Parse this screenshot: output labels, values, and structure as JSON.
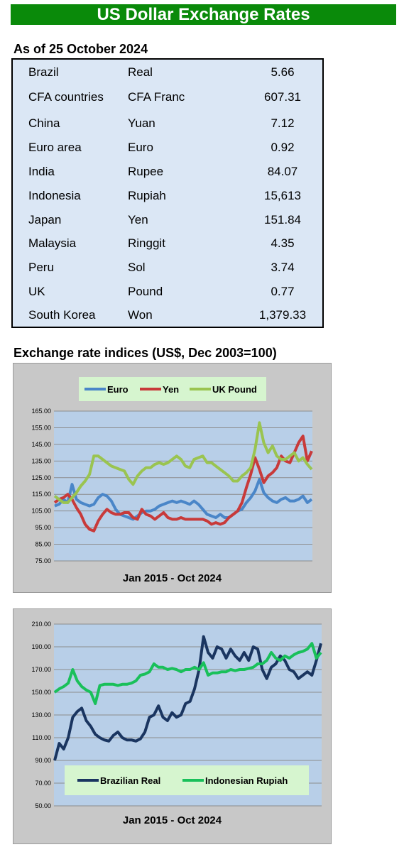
{
  "header": {
    "title": "US Dollar Exchange Rates"
  },
  "rates": {
    "as_of": "As of 25 October 2024",
    "rows": [
      {
        "country": "Brazil",
        "currency": "Real",
        "value": "5.66"
      },
      {
        "country": "CFA countries",
        "currency": "CFA Franc",
        "value": "607.31"
      },
      {
        "country": "China",
        "currency": "Yuan",
        "value": "7.12"
      },
      {
        "country": "Euro area",
        "currency": "Euro",
        "value": "0.92"
      },
      {
        "country": "India",
        "currency": "Rupee",
        "value": "84.07"
      },
      {
        "country": "Indonesia",
        "currency": "Rupiah",
        "value": "15,613"
      },
      {
        "country": "Japan",
        "currency": "Yen",
        "value": "151.84"
      },
      {
        "country": "Malaysia",
        "currency": "Ringgit",
        "value": "4.35"
      },
      {
        "country": "Peru",
        "currency": "Sol",
        "value": "3.74"
      },
      {
        "country": "UK",
        "currency": "Pound",
        "value": "0.77"
      },
      {
        "country": "South Korea",
        "currency": "Won",
        "value": "1,379.33"
      }
    ]
  },
  "indices": {
    "title": "Exchange rate indices (US$, Dec 2003=100)"
  },
  "chart_data": [
    {
      "type": "line",
      "xlabel": "Jan 2015 -  Oct 2024",
      "ylim": [
        75,
        165
      ],
      "yticks": [
        "75.00",
        "85.00",
        "95.00",
        "105.00",
        "115.00",
        "125.00",
        "135.00",
        "145.00",
        "155.00",
        "165.00"
      ],
      "ytick_values": [
        75,
        85,
        95,
        105,
        115,
        125,
        135,
        145,
        155,
        165
      ],
      "grid": true,
      "legend_position": "top-center",
      "x": [
        "2015-01",
        "2015-03",
        "2015-05",
        "2015-07",
        "2015-09",
        "2015-11",
        "2016-01",
        "2016-03",
        "2016-05",
        "2016-07",
        "2016-09",
        "2016-11",
        "2017-01",
        "2017-03",
        "2017-05",
        "2017-07",
        "2017-09",
        "2017-11",
        "2018-01",
        "2018-03",
        "2018-05",
        "2018-07",
        "2018-09",
        "2018-11",
        "2019-01",
        "2019-03",
        "2019-05",
        "2019-07",
        "2019-09",
        "2019-11",
        "2020-01",
        "2020-03",
        "2020-05",
        "2020-07",
        "2020-09",
        "2020-11",
        "2021-01",
        "2021-03",
        "2021-05",
        "2021-07",
        "2021-09",
        "2021-11",
        "2022-01",
        "2022-03",
        "2022-05",
        "2022-07",
        "2022-09",
        "2022-11",
        "2023-01",
        "2023-03",
        "2023-05",
        "2023-07",
        "2023-09",
        "2023-11",
        "2024-01",
        "2024-03",
        "2024-05",
        "2024-07",
        "2024-09",
        "2024-10"
      ],
      "series": [
        {
          "name": "Euro",
          "color": "#4a86c8",
          "values": [
            108,
            109,
            112,
            110,
            121,
            112,
            110,
            109,
            108,
            109,
            113,
            115,
            114,
            111,
            106,
            103,
            102,
            101,
            100,
            102,
            104,
            105,
            105,
            106,
            108,
            109,
            110,
            111,
            110,
            111,
            110,
            109,
            111,
            109,
            106,
            103,
            102,
            101,
            103,
            101,
            101,
            103,
            105,
            106,
            110,
            113,
            117,
            124,
            116,
            113,
            111,
            110,
            112,
            113,
            111,
            111,
            112,
            114,
            110,
            112
          ]
        },
        {
          "name": "Yen",
          "color": "#c83a3a",
          "values": [
            110,
            112,
            113,
            115,
            112,
            107,
            103,
            97,
            94,
            93,
            99,
            103,
            106,
            104,
            103,
            103,
            104,
            104,
            101,
            100,
            106,
            103,
            102,
            100,
            102,
            104,
            101,
            100,
            100,
            101,
            100,
            100,
            100,
            100,
            100,
            99,
            97,
            98,
            97,
            98,
            101,
            103,
            105,
            110,
            119,
            127,
            137,
            130,
            122,
            126,
            128,
            131,
            138,
            135,
            134,
            140,
            146,
            150,
            135,
            141
          ]
        },
        {
          "name": "UK Pound",
          "color": "#9ac450",
          "values": [
            114,
            112,
            110,
            110,
            113,
            116,
            120,
            123,
            127,
            138,
            138,
            136,
            134,
            132,
            131,
            130,
            129,
            124,
            121,
            126,
            129,
            131,
            131,
            133,
            134,
            133,
            134,
            136,
            138,
            136,
            132,
            131,
            136,
            137,
            138,
            134,
            134,
            132,
            130,
            128,
            126,
            123,
            123,
            126,
            128,
            131,
            142,
            158,
            146,
            140,
            144,
            138,
            136,
            136,
            138,
            140,
            135,
            137,
            133,
            130
          ]
        }
      ]
    },
    {
      "type": "line",
      "xlabel": "Jan 2015 - Oct 2024",
      "ylim": [
        50,
        210
      ],
      "yticks": [
        "50.00",
        "70.00",
        "90.00",
        "110.00",
        "130.00",
        "150.00",
        "170.00",
        "190.00",
        "210.00"
      ],
      "ytick_values": [
        50,
        70,
        90,
        110,
        130,
        150,
        170,
        190,
        210
      ],
      "grid": true,
      "legend_position": "bottom-center",
      "x": [
        "2015-01",
        "2015-03",
        "2015-05",
        "2015-07",
        "2015-09",
        "2015-11",
        "2016-01",
        "2016-03",
        "2016-05",
        "2016-07",
        "2016-09",
        "2016-11",
        "2017-01",
        "2017-03",
        "2017-05",
        "2017-07",
        "2017-09",
        "2017-11",
        "2018-01",
        "2018-03",
        "2018-05",
        "2018-07",
        "2018-09",
        "2018-11",
        "2019-01",
        "2019-03",
        "2019-05",
        "2019-07",
        "2019-09",
        "2019-11",
        "2020-01",
        "2020-03",
        "2020-05",
        "2020-07",
        "2020-09",
        "2020-11",
        "2021-01",
        "2021-03",
        "2021-05",
        "2021-07",
        "2021-09",
        "2021-11",
        "2022-01",
        "2022-03",
        "2022-05",
        "2022-07",
        "2022-09",
        "2022-11",
        "2023-01",
        "2023-03",
        "2023-05",
        "2023-07",
        "2023-09",
        "2023-11",
        "2024-01",
        "2024-03",
        "2024-05",
        "2024-07",
        "2024-09",
        "2024-10"
      ],
      "series": [
        {
          "name": "Brazilian Real",
          "color": "#1a3560",
          "values": [
            90,
            105,
            100,
            110,
            128,
            133,
            136,
            125,
            120,
            113,
            110,
            108,
            107,
            112,
            115,
            110,
            108,
            108,
            107,
            109,
            115,
            128,
            130,
            138,
            128,
            125,
            132,
            128,
            130,
            140,
            142,
            153,
            170,
            199,
            185,
            180,
            190,
            188,
            180,
            188,
            182,
            178,
            185,
            178,
            190,
            188,
            170,
            162,
            172,
            175,
            182,
            178,
            170,
            168,
            162,
            165,
            168,
            165,
            178,
            193
          ]
        },
        {
          "name": "Indonesian Rupiah",
          "color": "#19c05a",
          "values": [
            150,
            153,
            155,
            158,
            170,
            160,
            155,
            152,
            150,
            140,
            156,
            157,
            157,
            157,
            156,
            157,
            157,
            158,
            160,
            165,
            166,
            168,
            175,
            172,
            172,
            170,
            171,
            170,
            168,
            170,
            170,
            172,
            170,
            176,
            165,
            167,
            167,
            168,
            168,
            170,
            169,
            170,
            170,
            171,
            172,
            175,
            175,
            178,
            185,
            180,
            178,
            182,
            180,
            183,
            185,
            186,
            188,
            193,
            180,
            185
          ]
        }
      ]
    }
  ]
}
